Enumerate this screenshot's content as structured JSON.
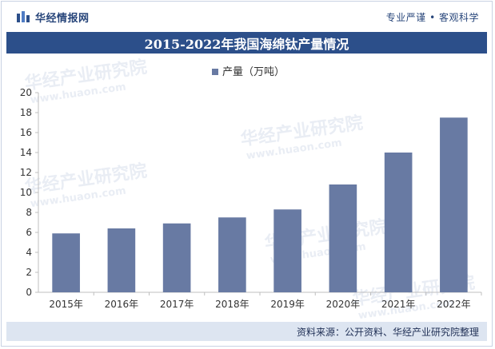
{
  "header": {
    "brand_name": "华经情报网",
    "slogan": "专业严谨 • 客观科学"
  },
  "title": "2015-2022年我国海绵钛产量情况",
  "watermark": {
    "name": "华经产业研究院",
    "url": "www.huaon.com"
  },
  "footer": {
    "source": "资料来源：公开资料、华经产业研究院整理"
  },
  "colors": {
    "brand_blue": "#2c4f8a",
    "bar": "#687aa3",
    "footer_bg": "#dde5f1"
  },
  "chart_data": {
    "type": "bar",
    "title": "2015-2022年我国海绵钛产量情况",
    "categories": [
      "2015年",
      "2016年",
      "2017年",
      "2018年",
      "2019年",
      "2020年",
      "2021年",
      "2022年"
    ],
    "series": [
      {
        "name": "产量（万吨）",
        "values": [
          5.9,
          6.4,
          6.9,
          7.5,
          8.3,
          10.8,
          14.0,
          17.5
        ]
      }
    ],
    "ylim": [
      0,
      20
    ],
    "yticks": [
      0,
      2,
      4,
      6,
      8,
      10,
      12,
      14,
      16,
      18,
      20
    ],
    "grid": false,
    "legend_position": "top-center"
  }
}
